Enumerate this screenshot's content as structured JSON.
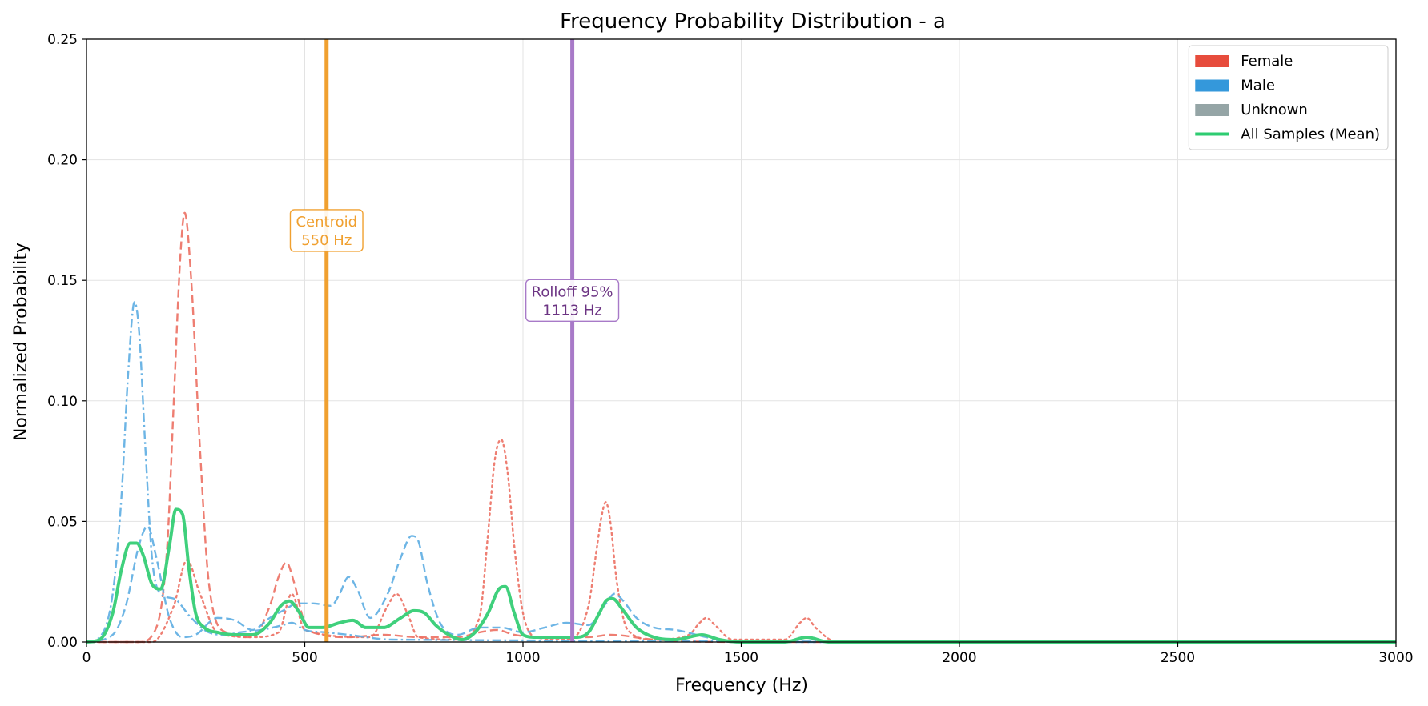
{
  "chart_data": {
    "type": "line",
    "title": "Frequency Probability Distribution - a",
    "xlabel": "Frequency (Hz)",
    "ylabel": "Normalized Probability",
    "xlim": [
      0,
      3000
    ],
    "ylim": [
      0,
      0.25
    ],
    "xticks": [
      0,
      500,
      1000,
      1500,
      2000,
      2500,
      3000
    ],
    "xtick_labels": [
      "0",
      "500",
      "1000",
      "1500",
      "2000",
      "2500",
      "3000"
    ],
    "yticks": [
      0,
      0.05,
      0.1,
      0.15,
      0.2,
      0.25
    ],
    "ytick_labels": [
      "0.00",
      "0.05",
      "0.10",
      "0.15",
      "0.20",
      "0.25"
    ],
    "grid": true,
    "legend_position": "top-right",
    "legend": [
      {
        "label": "Female",
        "color": "#e74c3c",
        "kind": "patch"
      },
      {
        "label": "Male",
        "color": "#3498db",
        "kind": "patch"
      },
      {
        "label": "Unknown",
        "color": "#95a5a6",
        "kind": "patch"
      },
      {
        "label": "All Samples (Mean)",
        "color": "#2ecc71",
        "kind": "line"
      }
    ],
    "vlines": [
      {
        "x": 550,
        "color": "#f0a030",
        "text_line1": "Centroid",
        "text_line2": "550 Hz",
        "label_y": 0.171
      },
      {
        "x": 1113,
        "color": "#a87ac8",
        "text_color": "#6c3483",
        "text_line1": "Rolloff 95%",
        "text_line2": "1113 Hz",
        "label_y": 0.142
      }
    ],
    "series": [
      {
        "group": "Female",
        "style": "dashed",
        "color": "#ec7063",
        "x": [
          0,
          120,
          160,
          185,
          200,
          215,
          225,
          240,
          260,
          280,
          320,
          380,
          420,
          440,
          458,
          475,
          500,
          540,
          600,
          680,
          760,
          850,
          900,
          940,
          980,
          1050,
          1150,
          1200,
          1300,
          1500,
          3000
        ],
        "y": [
          0,
          0,
          0.006,
          0.04,
          0.1,
          0.16,
          0.178,
          0.15,
          0.08,
          0.025,
          0.004,
          0.002,
          0.015,
          0.027,
          0.033,
          0.025,
          0.008,
          0.003,
          0.002,
          0.003,
          0.002,
          0.002,
          0.004,
          0.005,
          0.003,
          0.002,
          0.002,
          0.003,
          0.001,
          0,
          0
        ]
      },
      {
        "group": "Female",
        "style": "dotted",
        "color": "#ec7063",
        "x": [
          0,
          150,
          200,
          230,
          260,
          300,
          380,
          440,
          470,
          500,
          650,
          690,
          710,
          735,
          760,
          850,
          900,
          920,
          935,
          950,
          965,
          980,
          1000,
          1030,
          1100,
          1150,
          1170,
          1180,
          1190,
          1200,
          1215,
          1240,
          1300,
          1380,
          1405,
          1420,
          1440,
          1480,
          1600,
          1635,
          1650,
          1670,
          1720,
          3000
        ],
        "y": [
          0,
          0,
          0.015,
          0.034,
          0.02,
          0.004,
          0.002,
          0.004,
          0.02,
          0.005,
          0.002,
          0.015,
          0.02,
          0.012,
          0.002,
          0.001,
          0.01,
          0.045,
          0.075,
          0.084,
          0.07,
          0.04,
          0.012,
          0.002,
          0.001,
          0.015,
          0.04,
          0.052,
          0.058,
          0.05,
          0.025,
          0.005,
          0.001,
          0.003,
          0.008,
          0.01,
          0.007,
          0.001,
          0.001,
          0.008,
          0.01,
          0.006,
          0,
          0
        ]
      },
      {
        "group": "Male",
        "style": "dashdot",
        "color": "#5dade2",
        "x": [
          0,
          30,
          60,
          80,
          95,
          110,
          120,
          135,
          150,
          170,
          200,
          240,
          280,
          320,
          350,
          400,
          450,
          470,
          500,
          550,
          600,
          700,
          3000
        ],
        "y": [
          0,
          0.002,
          0.02,
          0.06,
          0.11,
          0.141,
          0.13,
          0.08,
          0.035,
          0.02,
          0.018,
          0.01,
          0.004,
          0.003,
          0.004,
          0.005,
          0.007,
          0.008,
          0.005,
          0.004,
          0.003,
          0.001,
          0
        ]
      },
      {
        "group": "Male",
        "style": "dashed",
        "color": "#5dade2",
        "x": [
          0,
          60,
          90,
          120,
          140,
          160,
          190,
          220,
          250,
          300,
          340,
          380,
          420,
          460,
          480,
          520,
          560,
          580,
          600,
          620,
          650,
          690,
          720,
          745,
          760,
          780,
          810,
          850,
          900,
          950,
          1000,
          1050,
          1100,
          1150,
          1190,
          1210,
          1230,
          1260,
          1300,
          1350,
          1420,
          1480,
          3000
        ],
        "y": [
          0,
          0.003,
          0.015,
          0.04,
          0.048,
          0.035,
          0.01,
          0.002,
          0.003,
          0.01,
          0.009,
          0.005,
          0.01,
          0.014,
          0.016,
          0.016,
          0.015,
          0.02,
          0.027,
          0.022,
          0.01,
          0.02,
          0.035,
          0.044,
          0.042,
          0.025,
          0.008,
          0.003,
          0.006,
          0.006,
          0.004,
          0.006,
          0.008,
          0.007,
          0.016,
          0.02,
          0.017,
          0.01,
          0.006,
          0.005,
          0.002,
          0,
          0
        ]
      },
      {
        "group": "All Samples (Mean)",
        "style": "solid",
        "color": "#3fd07c",
        "thick": true,
        "x": [
          0,
          30,
          60,
          80,
          100,
          115,
          130,
          150,
          170,
          190,
          205,
          220,
          235,
          250,
          270,
          300,
          340,
          380,
          420,
          445,
          465,
          485,
          510,
          540,
          580,
          610,
          640,
          680,
          720,
          750,
          775,
          800,
          830,
          860,
          890,
          920,
          945,
          960,
          980,
          1000,
          1030,
          1080,
          1120,
          1150,
          1175,
          1190,
          1205,
          1230,
          1260,
          1300,
          1350,
          1410,
          1450,
          1500,
          1600,
          1650,
          1700,
          3000
        ],
        "y": [
          0,
          0.001,
          0.012,
          0.03,
          0.041,
          0.041,
          0.036,
          0.024,
          0.022,
          0.04,
          0.055,
          0.053,
          0.03,
          0.012,
          0.006,
          0.004,
          0.003,
          0.003,
          0.008,
          0.015,
          0.017,
          0.013,
          0.006,
          0.006,
          0.008,
          0.009,
          0.006,
          0.006,
          0.01,
          0.013,
          0.012,
          0.007,
          0.003,
          0.001,
          0.004,
          0.012,
          0.022,
          0.023,
          0.012,
          0.003,
          0.002,
          0.002,
          0.002,
          0.004,
          0.012,
          0.017,
          0.018,
          0.013,
          0.006,
          0.002,
          0.001,
          0.003,
          0.001,
          0.0,
          0.0,
          0.002,
          0,
          0
        ]
      }
    ]
  }
}
